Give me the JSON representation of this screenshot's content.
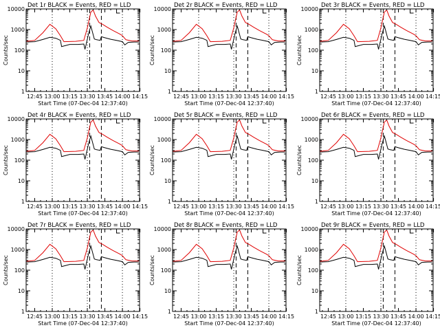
{
  "chart_data": [
    {
      "type": "line",
      "title": "Det 1r BLACK = Events, RED = LLD",
      "detector": "1r"
    },
    {
      "type": "line",
      "title": "Det 2r BLACK = Events, RED = LLD",
      "detector": "2r"
    },
    {
      "type": "line",
      "title": "Det 3r BLACK = Events, RED = LLD",
      "detector": "3r"
    },
    {
      "type": "line",
      "title": "Det 4r BLACK = Events, RED = LLD",
      "detector": "4r"
    },
    {
      "type": "line",
      "title": "Det 5r BLACK = Events, RED = LLD",
      "detector": "5r"
    },
    {
      "type": "line",
      "title": "Det 6r BLACK = Events, RED = LLD",
      "detector": "6r"
    },
    {
      "type": "line",
      "title": "Det 7r BLACK = Events, RED = LLD",
      "detector": "7r"
    },
    {
      "type": "line",
      "title": "Det 8r BLACK = Events, RED = LLD",
      "detector": "8r"
    },
    {
      "type": "line",
      "title": "Det 9r BLACK = Events, RED = LLD",
      "detector": "9r"
    }
  ],
  "shared": {
    "xlabel": "Start Time (07-Dec-04 12:37:40)",
    "ylabel": "Counts/sec",
    "x_ticks": [
      "12:45",
      "13:00",
      "13:15",
      "13:30",
      "13:45",
      "14:00",
      "14:15"
    ],
    "y_ticks": [
      "1",
      "10",
      "100",
      "1000",
      "10000"
    ],
    "yscale": "log",
    "ylim": [
      1,
      10000
    ],
    "xlim_minutes_from_start": [
      0,
      97
    ],
    "dotted_lines_at": [
      "13:00",
      "13:30",
      "14:00"
    ],
    "dashed_lines_at": [
      "13:32",
      "13:42"
    ],
    "series": [
      {
        "name": "Events",
        "color": "#000000"
      },
      {
        "name": "LLD",
        "color": "#e00000"
      }
    ],
    "events_profile": {
      "x": [
        "12:38",
        "12:45",
        "12:52",
        "12:58",
        "13:03",
        "13:07",
        "13:08",
        "13:15",
        "13:22",
        "13:27",
        "13:28",
        "13:31",
        "13:33",
        "13:36",
        "13:38",
        "13:41",
        "13:42",
        "13:45",
        "13:50",
        "13:55",
        "14:00",
        "14:02",
        "14:05",
        "14:10",
        "14:14"
      ],
      "y": [
        250,
        260,
        330,
        420,
        380,
        300,
        150,
        190,
        190,
        200,
        110,
        600,
        1500,
        350,
        320,
        300,
        450,
        400,
        340,
        300,
        260,
        180,
        240,
        250,
        250
      ]
    },
    "lld_profile": {
      "x": [
        "12:38",
        "12:45",
        "12:52",
        "12:58",
        "13:03",
        "13:07",
        "13:10",
        "13:20",
        "13:27",
        "13:30",
        "13:33",
        "13:35",
        "13:37",
        "13:40",
        "13:43",
        "13:47",
        "13:52",
        "13:58",
        "14:00",
        "14:03",
        "14:08",
        "14:14"
      ],
      "y": [
        270,
        300,
        700,
        1800,
        1100,
        500,
        260,
        270,
        300,
        1200,
        7000,
        9000,
        4500,
        2200,
        1800,
        1300,
        900,
        600,
        500,
        320,
        280,
        280
      ]
    }
  }
}
